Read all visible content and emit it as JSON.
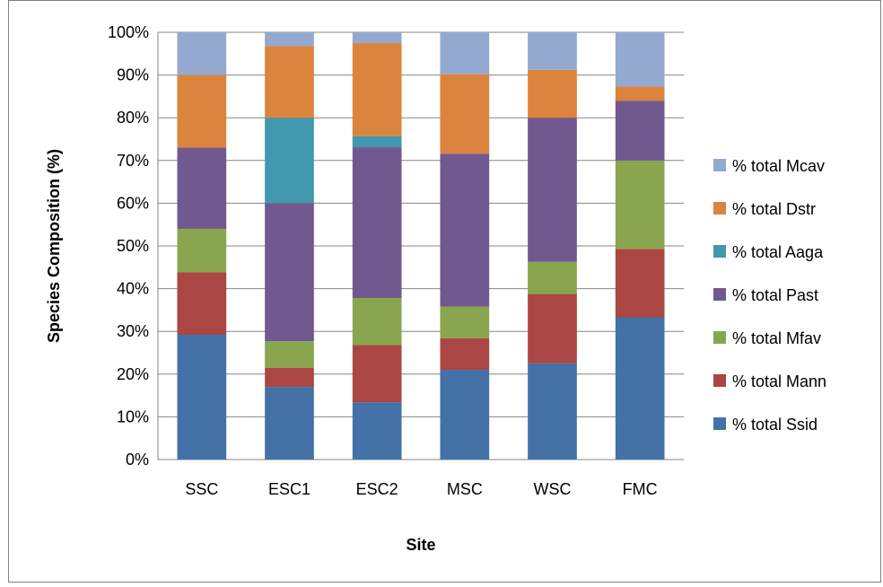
{
  "chart_data": {
    "type": "bar",
    "stacked": "percent",
    "title": "",
    "xlabel": "Site",
    "ylabel": "Species Composition (%)",
    "ylim": [
      0,
      100
    ],
    "y_ticks": [
      "0%",
      "10%",
      "20%",
      "30%",
      "40%",
      "50%",
      "60%",
      "70%",
      "80%",
      "90%",
      "100%"
    ],
    "grid": "horizontal",
    "legend_position": "right",
    "categories": [
      "SSC",
      "ESC1",
      "ESC2",
      "MSC",
      "WSC",
      "FMC"
    ],
    "series": [
      {
        "name": "% total Ssid",
        "color": "#4472A8",
        "values": [
          29.2,
          17.0,
          13.4,
          21.0,
          22.5,
          33.3
        ]
      },
      {
        "name": "% total Mann",
        "color": "#AA4643",
        "values": [
          14.6,
          4.5,
          13.4,
          7.4,
          16.3,
          16.0
        ]
      },
      {
        "name": "% total Mfav",
        "color": "#89A54E",
        "values": [
          10.2,
          6.2,
          11.0,
          7.4,
          7.5,
          20.7
        ]
      },
      {
        "name": "% total Past",
        "color": "#71588F",
        "values": [
          19.0,
          32.3,
          35.3,
          35.8,
          33.7,
          14.0
        ]
      },
      {
        "name": "% total Aaga",
        "color": "#4198AF",
        "values": [
          0.0,
          20.0,
          2.6,
          0.0,
          0.0,
          0.0
        ]
      },
      {
        "name": "% total Dstr",
        "color": "#DB843D",
        "values": [
          17.0,
          16.8,
          21.8,
          18.6,
          11.2,
          3.3
        ]
      },
      {
        "name": "% total Mcav",
        "color": "#93A9CF",
        "values": [
          10.0,
          3.2,
          2.5,
          9.8,
          8.8,
          12.7
        ]
      }
    ]
  }
}
